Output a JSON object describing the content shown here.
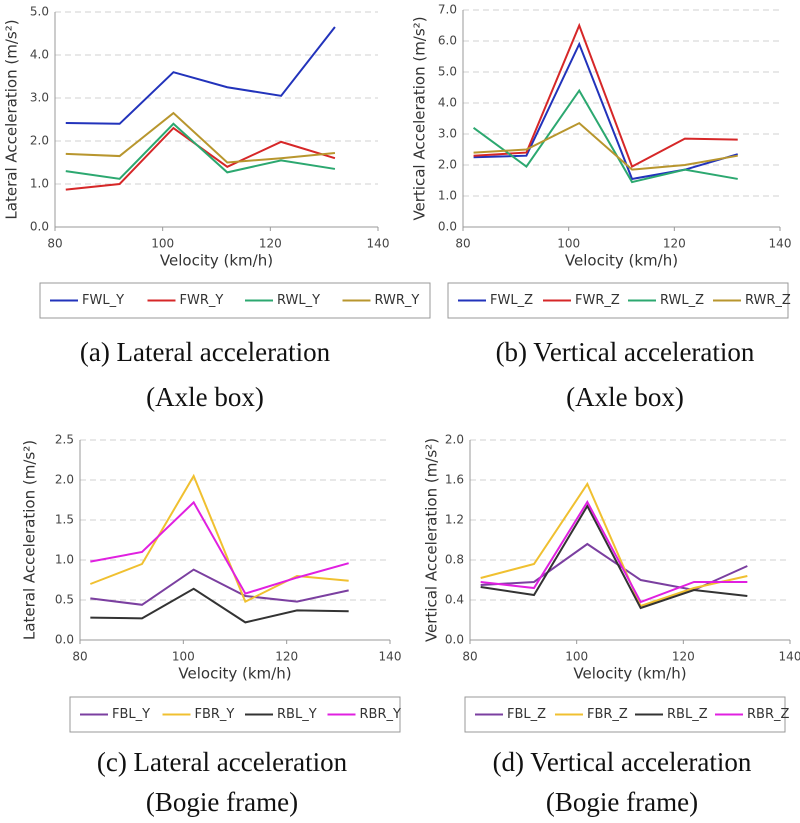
{
  "chart_data": [
    {
      "type": "line",
      "ylabel": "Lateral Acceleration (m/s²)",
      "xlabel": "Velocity (km/h)",
      "caption": [
        "(a) Lateral acceleration",
        "(Axle box)"
      ],
      "x": [
        82,
        92,
        102,
        112,
        122,
        132
      ],
      "xlim": [
        80,
        140
      ],
      "xticks": [
        80,
        100,
        120,
        140
      ],
      "ylim": [
        0,
        5
      ],
      "yticks": [
        {
          "value": 0,
          "label": "0.0"
        },
        {
          "value": 1,
          "label": "1.0"
        },
        {
          "value": 2,
          "label": "2.0"
        },
        {
          "value": 3,
          "label": "3.0"
        },
        {
          "value": 4,
          "label": "4.0"
        },
        {
          "value": 5,
          "label": "5.0"
        }
      ],
      "grid": true,
      "series": [
        {
          "name": "FWL_Y",
          "color": "#2233bb",
          "values": [
            2.42,
            2.4,
            3.6,
            3.25,
            3.05,
            4.65
          ]
        },
        {
          "name": "FWR_Y",
          "color": "#d62728",
          "values": [
            0.87,
            1.0,
            2.3,
            1.4,
            1.98,
            1.6
          ]
        },
        {
          "name": "RWL_Y",
          "color": "#2ca870",
          "values": [
            1.3,
            1.12,
            2.4,
            1.27,
            1.55,
            1.35
          ]
        },
        {
          "name": "RWR_Y",
          "color": "#b8962e",
          "values": [
            1.7,
            1.65,
            2.65,
            1.5,
            1.6,
            1.72
          ]
        }
      ]
    },
    {
      "type": "line",
      "ylabel": "Vertical Acceleration (m/s²)",
      "xlabel": "Velocity (km/h)",
      "caption": [
        "(b) Vertical acceleration",
        "(Axle box)"
      ],
      "x": [
        82,
        92,
        102,
        112,
        122,
        132
      ],
      "xlim": [
        80,
        140
      ],
      "xticks": [
        80,
        100,
        120,
        140
      ],
      "ylim": [
        0,
        7
      ],
      "yticks": [
        {
          "value": 0,
          "label": "0.0"
        },
        {
          "value": 1,
          "label": "1.0"
        },
        {
          "value": 2,
          "label": "2.0"
        },
        {
          "value": 3,
          "label": "3.0"
        },
        {
          "value": 4,
          "label": "4.0"
        },
        {
          "value": 5,
          "label": "5.0"
        },
        {
          "value": 6,
          "label": "6.0"
        },
        {
          "value": 7,
          "label": "7.0"
        }
      ],
      "grid": true,
      "series": [
        {
          "name": "FWL_Z",
          "color": "#2233bb",
          "values": [
            2.25,
            2.3,
            5.9,
            1.55,
            1.85,
            2.35
          ]
        },
        {
          "name": "FWR_Z",
          "color": "#d62728",
          "values": [
            2.3,
            2.4,
            6.5,
            1.95,
            2.85,
            2.82
          ]
        },
        {
          "name": "RWL_Z",
          "color": "#2ca870",
          "values": [
            3.2,
            1.95,
            4.4,
            1.45,
            1.85,
            1.55
          ]
        },
        {
          "name": "RWR_Z",
          "color": "#b8962e",
          "values": [
            2.4,
            2.5,
            3.35,
            1.85,
            2.0,
            2.3
          ]
        }
      ]
    },
    {
      "type": "line",
      "ylabel": "Lateral Acceleration (m/s²)",
      "xlabel": "Velocity (km/h)",
      "caption": [
        "(c) Lateral acceleration",
        "(Bogie frame)"
      ],
      "x": [
        82,
        92,
        102,
        112,
        122,
        132
      ],
      "xlim": [
        80,
        140
      ],
      "xticks": [
        80,
        100,
        120,
        140
      ],
      "ylim": [
        0,
        2.5
      ],
      "yticks": [
        {
          "value": 0,
          "label": "0.0"
        },
        0.5,
        {
          "value": 1,
          "label": "1.0"
        },
        1.5,
        {
          "value": 2,
          "label": "2.0"
        },
        2.5
      ],
      "grid": true,
      "series": [
        {
          "name": "FBL_Y",
          "color": "#7b3fa0",
          "values": [
            0.52,
            0.44,
            0.88,
            0.55,
            0.48,
            0.62
          ]
        },
        {
          "name": "FBR_Y",
          "color": "#f0c030",
          "values": [
            0.7,
            0.95,
            2.05,
            0.48,
            0.8,
            0.74
          ]
        },
        {
          "name": "RBL_Y",
          "color": "#333333",
          "values": [
            0.28,
            0.27,
            0.64,
            0.22,
            0.37,
            0.36
          ]
        },
        {
          "name": "RBR_Y",
          "color": "#e020e0",
          "values": [
            0.98,
            1.1,
            1.72,
            0.58,
            0.78,
            0.96
          ]
        }
      ]
    },
    {
      "type": "line",
      "ylabel": "Vertical Acceleration (m/s²)",
      "xlabel": "Velocity (km/h)",
      "caption": [
        "(d) Vertical acceleration",
        "(Bogie frame)"
      ],
      "x": [
        82,
        92,
        102,
        112,
        122,
        132
      ],
      "xlim": [
        80,
        140
      ],
      "xticks": [
        80,
        100,
        120,
        140
      ],
      "ylim": [
        0,
        2
      ],
      "yticks": [
        {
          "value": 0,
          "label": "0.0"
        },
        0.4,
        0.8,
        1.2,
        1.6,
        {
          "value": 2,
          "label": "2.0"
        }
      ],
      "grid": true,
      "series": [
        {
          "name": "FBL_Z",
          "color": "#7b3fa0",
          "values": [
            0.55,
            0.58,
            0.96,
            0.6,
            0.5,
            0.74
          ]
        },
        {
          "name": "FBR_Z",
          "color": "#f0c030",
          "values": [
            0.62,
            0.76,
            1.56,
            0.34,
            0.52,
            0.64
          ]
        },
        {
          "name": "RBL_Z",
          "color": "#333333",
          "values": [
            0.53,
            0.45,
            1.34,
            0.32,
            0.5,
            0.44
          ]
        },
        {
          "name": "RBR_Z",
          "color": "#e020e0",
          "values": [
            0.58,
            0.52,
            1.38,
            0.38,
            0.58,
            0.58
          ]
        }
      ]
    }
  ]
}
